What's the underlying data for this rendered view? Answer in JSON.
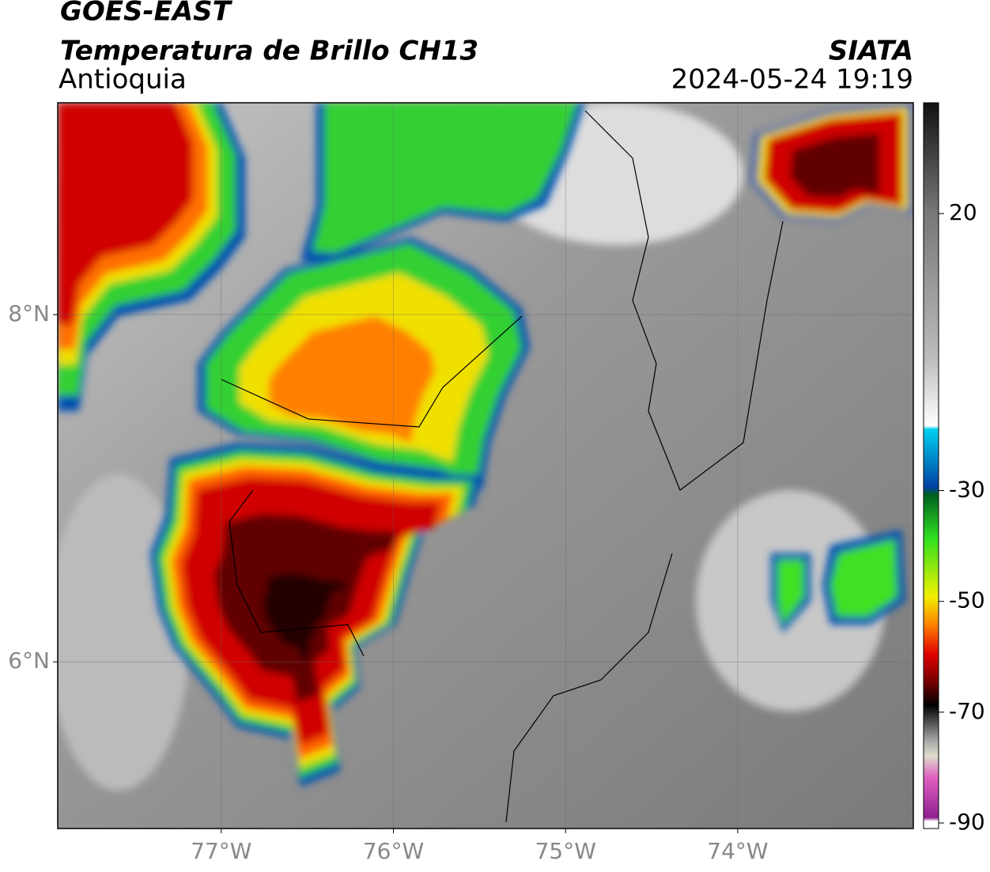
{
  "header": {
    "title": "GOES-EAST",
    "subtitle": "Temperatura de Brillo CH13",
    "region": "Antioquia",
    "source": "SIATA",
    "datetime": "2024-05-24 19:19"
  },
  "map": {
    "xlim": [
      -77.95,
      -72.98
    ],
    "ylim": [
      5.04,
      9.22
    ],
    "xticks": [
      {
        "value": -77,
        "label": "77°W"
      },
      {
        "value": -76,
        "label": "76°W"
      },
      {
        "value": -75,
        "label": "75°W"
      },
      {
        "value": -74,
        "label": "74°W"
      }
    ],
    "yticks": [
      {
        "value": 6,
        "label": "6°N"
      },
      {
        "value": 8,
        "label": "8°N"
      }
    ],
    "grid": true
  },
  "colorbar": {
    "lim": [
      -91,
      40
    ],
    "ticks": [
      20,
      -30,
      -50,
      -70,
      -90
    ]
  }
}
